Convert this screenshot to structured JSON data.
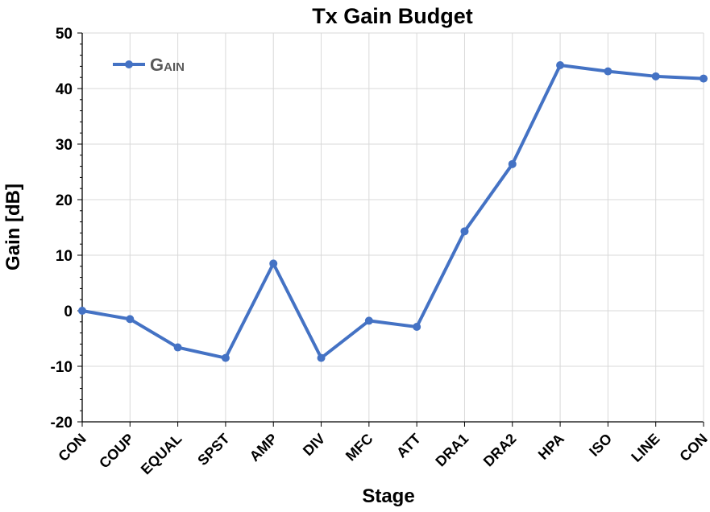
{
  "chart_data": {
    "type": "line",
    "title": "Tx Gain Budget",
    "xlabel": "Stage",
    "ylabel": "Gain [dB]",
    "ylim": [
      -20,
      50
    ],
    "yticks": [
      "-20",
      "-10",
      "0",
      "10",
      "20",
      "30",
      "40",
      "50"
    ],
    "categories": [
      "CON",
      "COUP",
      "EQUAL",
      "SPST",
      "AMP",
      "DIV",
      "MFC",
      "ATT",
      "DRA1",
      "DRA2",
      "HPA",
      "ISO",
      "LINE",
      "CON"
    ],
    "series": [
      {
        "name": "Gain",
        "color": "#4472C4",
        "values": [
          0,
          -1.5,
          -6.6,
          -8.5,
          8.5,
          -8.5,
          -1.8,
          -2.9,
          14.3,
          26.4,
          44.2,
          43.1,
          42.2,
          41.8
        ]
      }
    ],
    "grid": true,
    "legend": "top-left"
  }
}
